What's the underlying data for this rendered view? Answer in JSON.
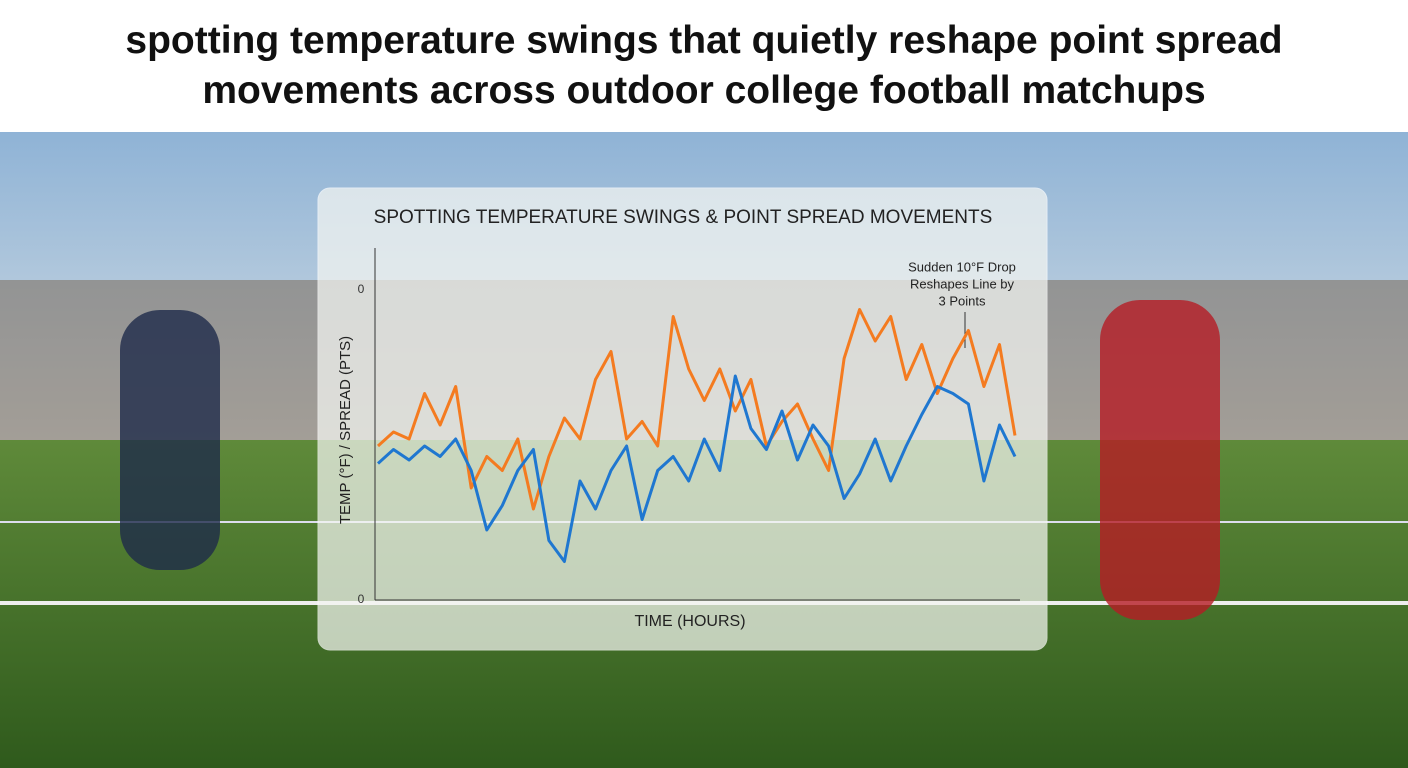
{
  "page_title": "spotting temperature swings that quietly reshape point spread movements across outdoor college football matchups",
  "chart_data": {
    "type": "line",
    "title": "SPOTTING TEMPERATURE SWINGS & POINT SPREAD MOVEMENTS",
    "x_label": "TIME (HOURS)",
    "y_label": "TEMP (°F) / SPREAD (PTS)",
    "y_tick_texts": [
      "0",
      "0"
    ],
    "annotation": [
      "Sudden 10°F Drop",
      "Reshapes Line by",
      "3 Points"
    ],
    "ylim": [
      0,
      100
    ],
    "categories": [
      null,
      null,
      null,
      null,
      null,
      null,
      null,
      null,
      null,
      null,
      null,
      null,
      null,
      null,
      null,
      null,
      null,
      null,
      null,
      null,
      null,
      null,
      null,
      null,
      null,
      null,
      null,
      null,
      null,
      null,
      null,
      null,
      null,
      null,
      null,
      null,
      null,
      null,
      null,
      null,
      null,
      null
    ],
    "series": [
      {
        "color": "#f47b20",
        "values": [
          44,
          48,
          46,
          59,
          50,
          61,
          32,
          41,
          37,
          46,
          26,
          41,
          52,
          46,
          63,
          71,
          46,
          51,
          44,
          81,
          66,
          57,
          66,
          54,
          63,
          44,
          51,
          56,
          46,
          37,
          69,
          83,
          74,
          81,
          63,
          73,
          59,
          69,
          77,
          61,
          73,
          47
        ]
      },
      {
        "color": "#1f77d0",
        "values": [
          39,
          43,
          40,
          44,
          41,
          46,
          37,
          20,
          27,
          37,
          43,
          17,
          11,
          34,
          26,
          37,
          44,
          23,
          37,
          41,
          34,
          46,
          37,
          64,
          49,
          43,
          54,
          40,
          50,
          44,
          29,
          36,
          46,
          34,
          44,
          53,
          61,
          59,
          56,
          34,
          50,
          41
        ]
      }
    ]
  }
}
